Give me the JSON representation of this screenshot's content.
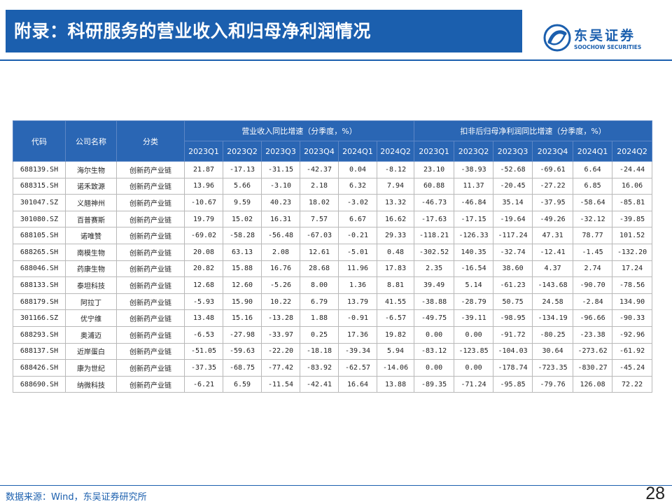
{
  "header": {
    "title": "附录：科研服务的营业收入和归母净利润情况",
    "brand": {
      "name_cn": "东吴证券",
      "name_en": "SOOCHOW SECURITIES",
      "color": "#1b5fae"
    }
  },
  "table": {
    "columns": {
      "code": "代码",
      "company": "公司名称",
      "category": "分类"
    },
    "group_revenue": "营业收入同比增速（分季度，%）",
    "group_profit": "扣非后归母净利润同比增速（分季度，%）",
    "quarters": [
      "2023Q1",
      "2023Q2",
      "2023Q3",
      "2023Q4",
      "2024Q1",
      "2024Q2"
    ],
    "rows": [
      {
        "code": "688139.SH",
        "company": "海尔生物",
        "category": "创新药产业链",
        "revenue": [
          "21.87",
          "-17.13",
          "-31.15",
          "-42.37",
          "0.04",
          "-8.12"
        ],
        "profit": [
          "23.10",
          "-38.93",
          "-52.68",
          "-69.61",
          "6.64",
          "-24.44"
        ]
      },
      {
        "code": "688315.SH",
        "company": "诺禾致源",
        "category": "创新药产业链",
        "revenue": [
          "13.96",
          "5.66",
          "-3.10",
          "2.18",
          "6.32",
          "7.94"
        ],
        "profit": [
          "60.88",
          "11.37",
          "-20.45",
          "-27.22",
          "6.85",
          "16.06"
        ]
      },
      {
        "code": "301047.SZ",
        "company": "义翘神州",
        "category": "创新药产业链",
        "revenue": [
          "-10.67",
          "9.59",
          "40.23",
          "18.02",
          "-3.02",
          "13.32"
        ],
        "profit": [
          "-46.73",
          "-46.84",
          "35.14",
          "-37.95",
          "-58.64",
          "-85.81"
        ]
      },
      {
        "code": "301080.SZ",
        "company": "百普赛斯",
        "category": "创新药产业链",
        "revenue": [
          "19.79",
          "15.02",
          "16.31",
          "7.57",
          "6.67",
          "16.62"
        ],
        "profit": [
          "-17.63",
          "-17.15",
          "-19.64",
          "-49.26",
          "-32.12",
          "-39.85"
        ]
      },
      {
        "code": "688105.SH",
        "company": "诺唯赞",
        "category": "创新药产业链",
        "revenue": [
          "-69.02",
          "-58.28",
          "-56.48",
          "-67.03",
          "-0.21",
          "29.33"
        ],
        "profit": [
          "-118.21",
          "-126.33",
          "-117.24",
          "47.31",
          "78.77",
          "101.52"
        ]
      },
      {
        "code": "688265.SH",
        "company": "南模生物",
        "category": "创新药产业链",
        "revenue": [
          "20.08",
          "63.13",
          "2.08",
          "12.61",
          "-5.01",
          "0.48"
        ],
        "profit": [
          "-302.52",
          "140.35",
          "-32.74",
          "-12.41",
          "-1.45",
          "-132.20"
        ]
      },
      {
        "code": "688046.SH",
        "company": "药康生物",
        "category": "创新药产业链",
        "revenue": [
          "20.82",
          "15.88",
          "16.76",
          "28.68",
          "11.96",
          "17.83"
        ],
        "profit": [
          "2.35",
          "-16.54",
          "38.60",
          "4.37",
          "2.74",
          "17.24"
        ]
      },
      {
        "code": "688133.SH",
        "company": "泰坦科技",
        "category": "创新药产业链",
        "revenue": [
          "12.68",
          "12.60",
          "-5.26",
          "8.00",
          "1.36",
          "8.81"
        ],
        "profit": [
          "39.49",
          "5.14",
          "-61.23",
          "-143.68",
          "-90.70",
          "-78.56"
        ]
      },
      {
        "code": "688179.SH",
        "company": "阿拉丁",
        "category": "创新药产业链",
        "revenue": [
          "-5.93",
          "15.90",
          "10.22",
          "6.79",
          "13.79",
          "41.55"
        ],
        "profit": [
          "-38.88",
          "-28.79",
          "50.75",
          "24.58",
          "-2.84",
          "134.90"
        ]
      },
      {
        "code": "301166.SZ",
        "company": "优宁维",
        "category": "创新药产业链",
        "revenue": [
          "13.48",
          "15.16",
          "-13.28",
          "1.88",
          "-0.91",
          "-6.57"
        ],
        "profit": [
          "-49.75",
          "-39.11",
          "-98.95",
          "-134.19",
          "-96.66",
          "-90.33"
        ]
      },
      {
        "code": "688293.SH",
        "company": "奥浦迈",
        "category": "创新药产业链",
        "revenue": [
          "-6.53",
          "-27.98",
          "-33.97",
          "0.25",
          "17.36",
          "19.82"
        ],
        "profit": [
          "0.00",
          "0.00",
          "-91.72",
          "-80.25",
          "-23.38",
          "-92.96"
        ]
      },
      {
        "code": "688137.SH",
        "company": "近岸蛋白",
        "category": "创新药产业链",
        "revenue": [
          "-51.05",
          "-59.63",
          "-22.20",
          "-18.18",
          "-39.34",
          "5.94"
        ],
        "profit": [
          "-83.12",
          "-123.85",
          "-104.03",
          "30.64",
          "-273.62",
          "-61.92"
        ]
      },
      {
        "code": "688426.SH",
        "company": "康为世纪",
        "category": "创新药产业链",
        "revenue": [
          "-37.35",
          "-68.75",
          "-77.42",
          "-83.92",
          "-62.57",
          "-14.06"
        ],
        "profit": [
          "0.00",
          "0.00",
          "-178.74",
          "-723.35",
          "-830.27",
          "-45.24"
        ]
      },
      {
        "code": "688690.SH",
        "company": "纳微科技",
        "category": "创新药产业链",
        "revenue": [
          "-6.21",
          "6.59",
          "-11.54",
          "-42.41",
          "16.64",
          "13.88"
        ],
        "profit": [
          "-89.35",
          "-71.24",
          "-95.85",
          "-79.76",
          "126.08",
          "72.22"
        ]
      }
    ]
  },
  "footer": {
    "source": "数据来源：Wind，东吴证券研究所",
    "page": "28"
  }
}
